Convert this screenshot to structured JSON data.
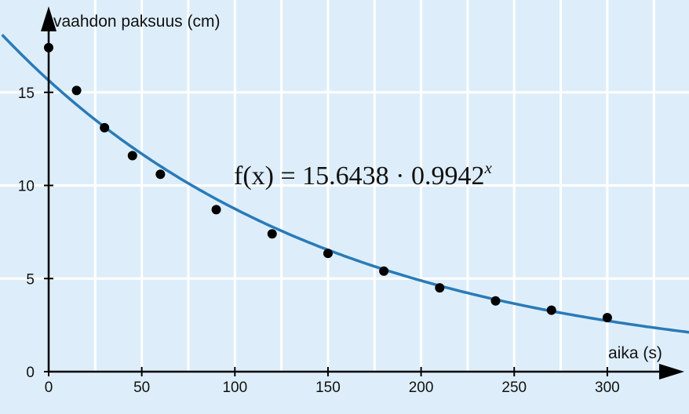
{
  "chart_data": {
    "type": "scatter",
    "title": "",
    "xlabel": "aika (s)",
    "ylabel": "vaahdon paksuus (cm)",
    "xlim": [
      0,
      345
    ],
    "ylim": [
      0,
      19
    ],
    "x_ticks": [
      0,
      50,
      100,
      150,
      200,
      250,
      300
    ],
    "y_ticks": [
      0,
      5,
      10,
      15
    ],
    "x_tick_labels": [
      "0",
      "50",
      "100",
      "150",
      "200",
      "250",
      "300"
    ],
    "y_tick_labels": [
      "0",
      "5",
      "10",
      "15"
    ],
    "grid": true,
    "background_color": "#ddeefa",
    "grid_color": "#ffffff",
    "points": [
      {
        "x": 0,
        "y": 17.4
      },
      {
        "x": 15,
        "y": 15.1
      },
      {
        "x": 30,
        "y": 13.1
      },
      {
        "x": 45,
        "y": 11.6
      },
      {
        "x": 60,
        "y": 10.6
      },
      {
        "x": 90,
        "y": 8.7
      },
      {
        "x": 120,
        "y": 7.4
      },
      {
        "x": 150,
        "y": 6.35
      },
      {
        "x": 180,
        "y": 5.4
      },
      {
        "x": 210,
        "y": 4.5
      },
      {
        "x": 240,
        "y": 3.8
      },
      {
        "x": 270,
        "y": 3.3
      },
      {
        "x": 300,
        "y": 2.9
      }
    ],
    "point_color": "#000000",
    "fit": {
      "a": 15.6438,
      "b": 0.9942,
      "color": "#2a7ab8",
      "label_lhs": "f(x) = 15.6438 · 0.9942",
      "label_exp": "x"
    }
  }
}
